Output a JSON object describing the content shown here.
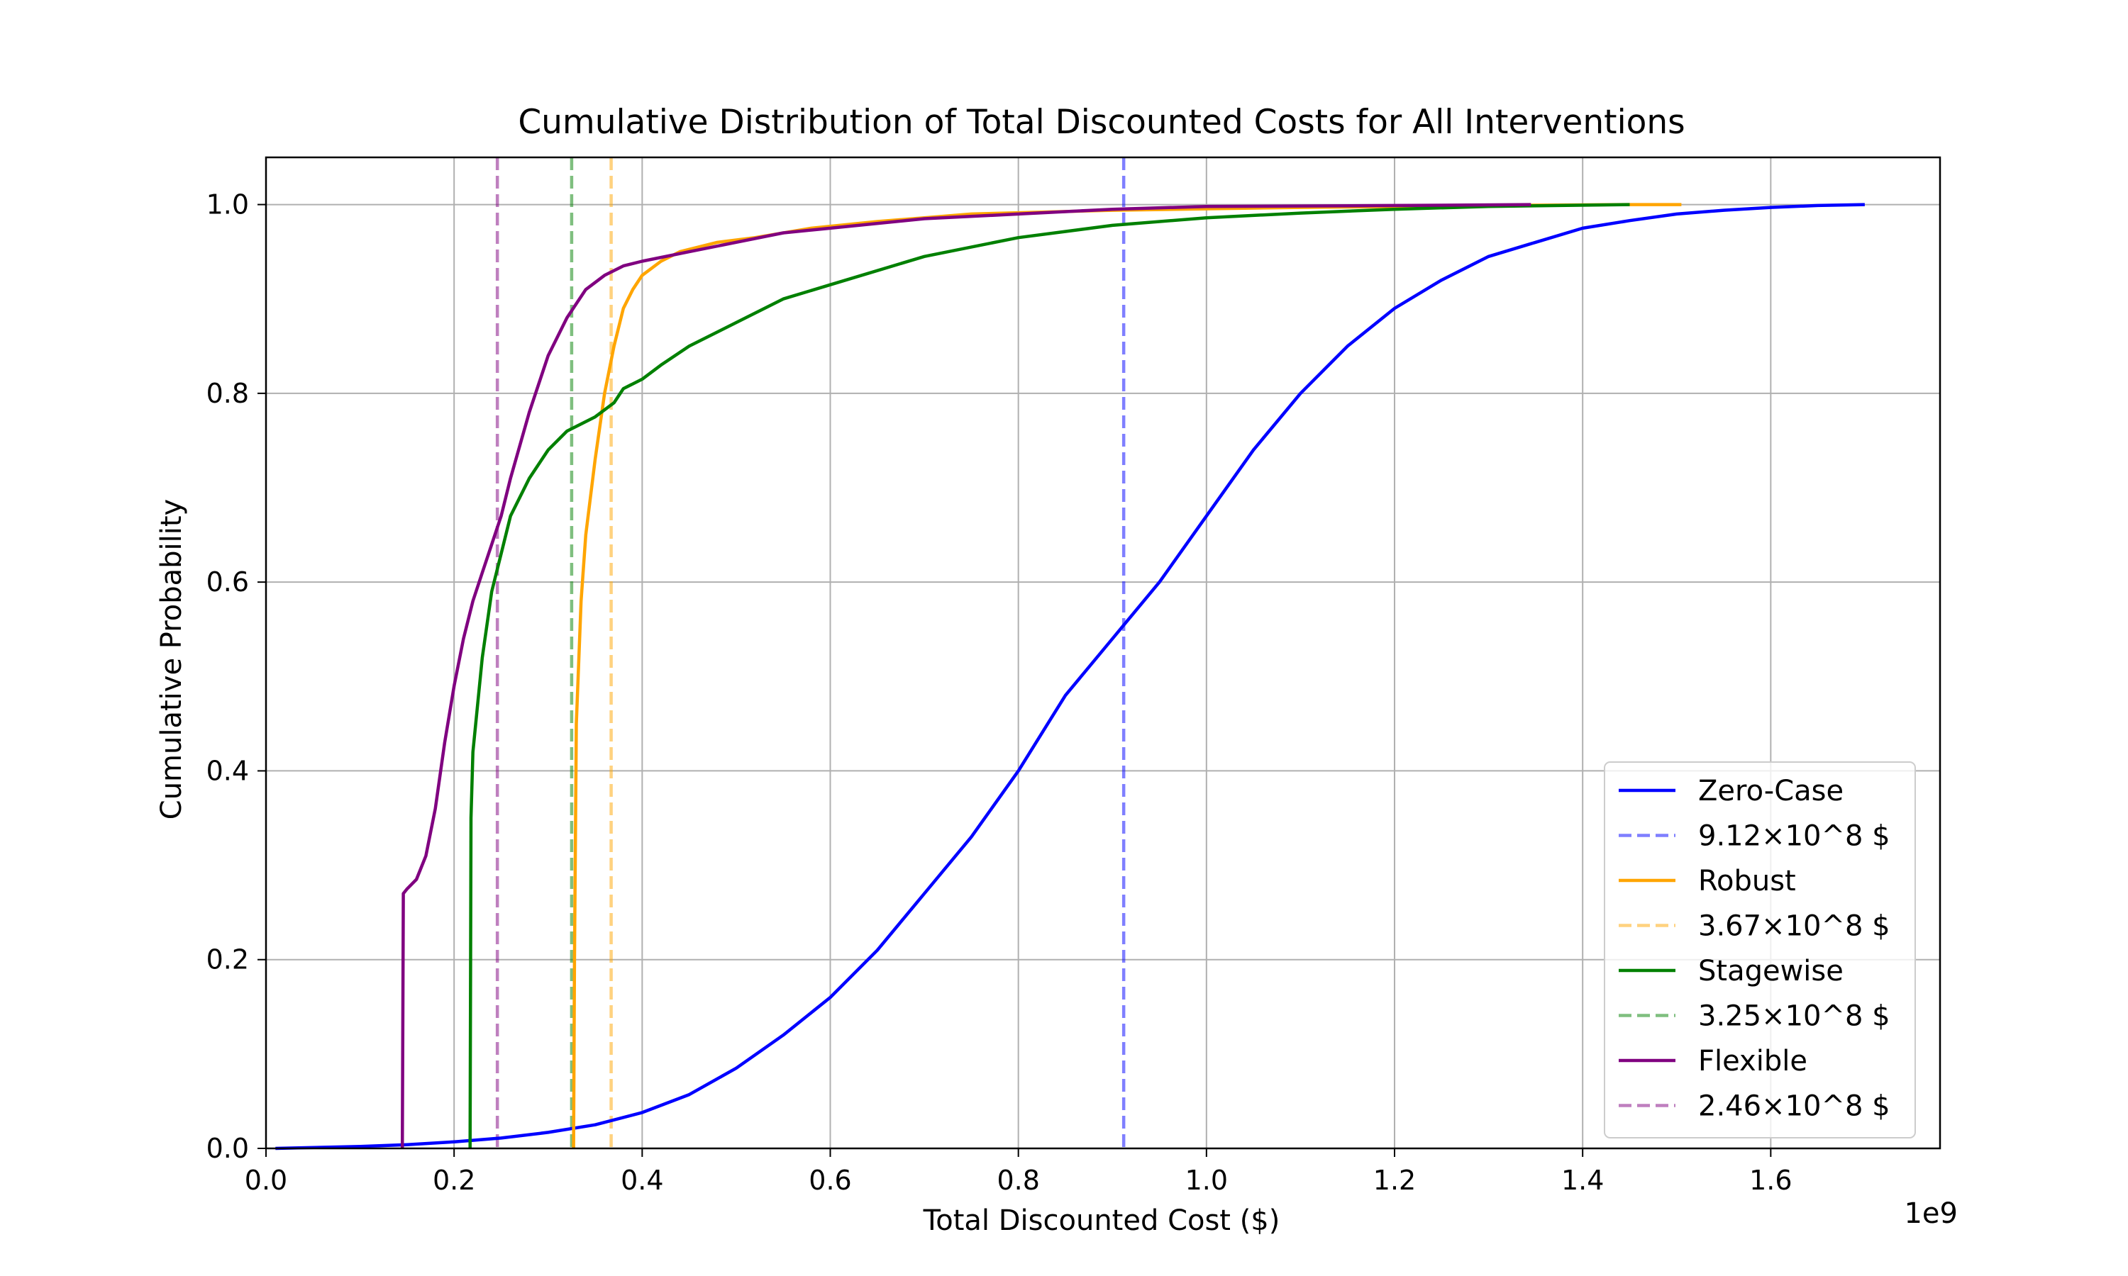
{
  "chart_data": {
    "type": "line",
    "title": "Cumulative Distribution of Total Discounted Costs for All Interventions",
    "xlabel": "Total Discounted Cost ($)",
    "ylabel": "Cumulative Probability",
    "x_offset_label": "1e9",
    "xlim": [
      0.0,
      1.78
    ],
    "ylim": [
      0.0,
      1.05
    ],
    "x_ticks": [
      0.0,
      0.2,
      0.4,
      0.6,
      0.8,
      1.0,
      1.2,
      1.4,
      1.6
    ],
    "x_tick_labels": [
      "0.0",
      "0.2",
      "0.4",
      "0.6",
      "0.8",
      "1.0",
      "1.2",
      "1.4",
      "1.6"
    ],
    "y_ticks": [
      0.0,
      0.2,
      0.4,
      0.6,
      0.8,
      1.0
    ],
    "y_tick_labels": [
      "0.0",
      "0.2",
      "0.4",
      "0.6",
      "0.8",
      "1.0"
    ],
    "grid": true,
    "legend_position": "lower-right",
    "series": [
      {
        "name": "Zero-Case",
        "color": "#0000ff",
        "x": [
          0.01,
          0.1,
          0.15,
          0.2,
          0.25,
          0.3,
          0.35,
          0.4,
          0.45,
          0.5,
          0.55,
          0.6,
          0.65,
          0.7,
          0.75,
          0.8,
          0.85,
          0.9,
          0.95,
          1.0,
          1.05,
          1.1,
          1.15,
          1.2,
          1.25,
          1.3,
          1.35,
          1.4,
          1.45,
          1.5,
          1.55,
          1.6,
          1.65,
          1.7
        ],
        "y": [
          0.0,
          0.002,
          0.004,
          0.007,
          0.011,
          0.017,
          0.025,
          0.038,
          0.057,
          0.085,
          0.12,
          0.16,
          0.21,
          0.27,
          0.33,
          0.4,
          0.48,
          0.54,
          0.6,
          0.67,
          0.74,
          0.8,
          0.85,
          0.89,
          0.92,
          0.945,
          0.96,
          0.975,
          0.983,
          0.99,
          0.994,
          0.997,
          0.999,
          1.0
        ]
      },
      {
        "name": "Robust",
        "color": "#ffa500",
        "x": [
          0.327,
          0.328,
          0.33,
          0.335,
          0.34,
          0.35,
          0.36,
          0.37,
          0.38,
          0.39,
          0.4,
          0.42,
          0.44,
          0.48,
          0.52,
          0.58,
          0.65,
          0.75,
          0.9,
          1.1,
          1.3,
          1.45,
          1.505
        ],
        "y": [
          0.0,
          0.2,
          0.45,
          0.58,
          0.65,
          0.73,
          0.8,
          0.85,
          0.89,
          0.91,
          0.925,
          0.94,
          0.95,
          0.96,
          0.965,
          0.975,
          0.982,
          0.99,
          0.994,
          0.997,
          0.999,
          1.0,
          1.0
        ]
      },
      {
        "name": "Stagewise",
        "color": "#008000",
        "x": [
          0.217,
          0.218,
          0.22,
          0.225,
          0.23,
          0.24,
          0.25,
          0.26,
          0.28,
          0.3,
          0.32,
          0.35,
          0.37,
          0.38,
          0.4,
          0.42,
          0.45,
          0.5,
          0.55,
          0.6,
          0.7,
          0.8,
          0.9,
          1.0,
          1.1,
          1.2,
          1.3,
          1.45
        ],
        "y": [
          0.0,
          0.35,
          0.42,
          0.47,
          0.52,
          0.59,
          0.63,
          0.67,
          0.71,
          0.74,
          0.76,
          0.775,
          0.79,
          0.805,
          0.815,
          0.83,
          0.85,
          0.875,
          0.9,
          0.915,
          0.945,
          0.965,
          0.978,
          0.986,
          0.991,
          0.995,
          0.998,
          1.0
        ]
      },
      {
        "name": "Flexible",
        "color": "#800080",
        "x": [
          0.145,
          0.146,
          0.15,
          0.16,
          0.17,
          0.18,
          0.19,
          0.2,
          0.21,
          0.22,
          0.23,
          0.24,
          0.25,
          0.26,
          0.28,
          0.3,
          0.32,
          0.34,
          0.36,
          0.38,
          0.4,
          0.45,
          0.5,
          0.55,
          0.6,
          0.7,
          0.8,
          0.9,
          1.0,
          1.2,
          1.345
        ],
        "y": [
          0.0,
          0.27,
          0.275,
          0.285,
          0.31,
          0.36,
          0.43,
          0.49,
          0.54,
          0.58,
          0.61,
          0.64,
          0.67,
          0.71,
          0.78,
          0.84,
          0.88,
          0.91,
          0.925,
          0.935,
          0.94,
          0.95,
          0.96,
          0.97,
          0.975,
          0.985,
          0.99,
          0.995,
          0.998,
          0.999,
          1.0
        ]
      }
    ],
    "vertical_lines": [
      {
        "name": "9.12×10^8 $",
        "x": 0.912,
        "color": "#0000ff"
      },
      {
        "name": "3.67×10^8 $",
        "x": 0.367,
        "color": "#ffa500"
      },
      {
        "name": "3.25×10^8 $",
        "x": 0.325,
        "color": "#008000"
      },
      {
        "name": "2.46×10^8 $",
        "x": 0.246,
        "color": "#800080"
      }
    ],
    "legend": [
      {
        "label": "Zero-Case",
        "style": "solid",
        "color": "#0000ff"
      },
      {
        "label": "9.12×10^8 $",
        "style": "dashed",
        "color": "#0000ff"
      },
      {
        "label": "Robust",
        "style": "solid",
        "color": "#ffa500"
      },
      {
        "label": "3.67×10^8 $",
        "style": "dashed",
        "color": "#ffa500"
      },
      {
        "label": "Stagewise",
        "style": "solid",
        "color": "#008000"
      },
      {
        "label": "3.25×10^8 $",
        "style": "dashed",
        "color": "#008000"
      },
      {
        "label": "Flexible",
        "style": "solid",
        "color": "#800080"
      },
      {
        "label": "2.46×10^8 $",
        "style": "dashed",
        "color": "#800080"
      }
    ]
  }
}
